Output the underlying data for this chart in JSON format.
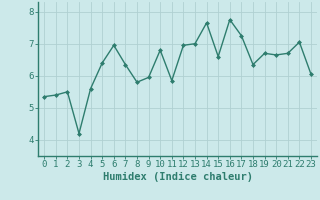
{
  "title": "",
  "xlabel": "Humidex (Indice chaleur)",
  "ylabel": "",
  "x_values": [
    0,
    1,
    2,
    3,
    4,
    5,
    6,
    7,
    8,
    9,
    10,
    11,
    12,
    13,
    14,
    15,
    16,
    17,
    18,
    19,
    20,
    21,
    22,
    23
  ],
  "y_values": [
    5.35,
    5.4,
    5.5,
    4.2,
    5.6,
    6.4,
    6.95,
    6.35,
    5.8,
    5.95,
    6.8,
    5.85,
    6.95,
    7.0,
    7.65,
    6.6,
    7.75,
    7.25,
    6.35,
    6.7,
    6.65,
    6.7,
    7.05,
    6.05
  ],
  "line_color": "#2e7d6e",
  "marker": "D",
  "marker_size": 2.0,
  "line_width": 1.0,
  "bg_color": "#cce9ea",
  "plot_bg_color": "#cce9ea",
  "grid_color": "#b0d0d2",
  "tick_color": "#2e7d6e",
  "label_color": "#2e7d6e",
  "ylim": [
    3.5,
    8.3
  ],
  "yticks": [
    4,
    5,
    6,
    7,
    8
  ],
  "xlim": [
    -0.5,
    23.5
  ],
  "xticks": [
    0,
    1,
    2,
    3,
    4,
    5,
    6,
    7,
    8,
    9,
    10,
    11,
    12,
    13,
    14,
    15,
    16,
    17,
    18,
    19,
    20,
    21,
    22,
    23
  ],
  "xlabel_fontsize": 7.5,
  "tick_fontsize": 6.5,
  "border_color": "#2e7d6e",
  "spine_bottom_color": "#2e7d6e",
  "spine_left_color": "#2e7d6e"
}
